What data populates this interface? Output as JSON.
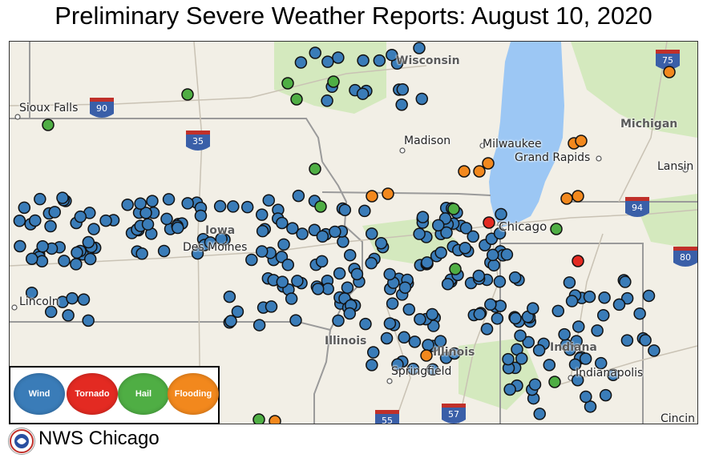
{
  "title": "Preliminary Severe Weather Reports:  August 10, 2020",
  "footer": "NWS Chicago",
  "legend": [
    {
      "label": "Wind",
      "color": "#3a7cb8"
    },
    {
      "label": "Tornado",
      "color": "#e32a22"
    },
    {
      "label": "Hail",
      "color": "#4fae44"
    },
    {
      "label": "Flooding",
      "color": "#f2881d"
    }
  ],
  "cities": {
    "sioux_falls": "Sioux Falls",
    "madison": "Madison",
    "milwaukee": "Milwaukee",
    "grand_rapids": "Grand Rapids",
    "lansing": "Lansin",
    "chicago": "Chicago",
    "des_moines": "Des Moines",
    "lincoln": "Lincoln",
    "springfield": "Springfield",
    "indianapolis": "Indianapolis",
    "cincinnati": "Cincin"
  },
  "regions": {
    "wisconsin": "Wisconsin",
    "michigan": "Michigan",
    "iowa": "Iowa",
    "illinois1": "Illinois",
    "illinois2": "Illinois",
    "indiana": "Indiana"
  },
  "highways": [
    "90",
    "35",
    "75",
    "94",
    "80",
    "55",
    "57"
  ],
  "report_counts": {
    "wind": "many",
    "tornado": 2
  },
  "colors": {
    "land": "#f2efe6",
    "lake": "#9cc7f4",
    "forest": "#cfe6b8",
    "wind": "#3a7cb8",
    "tornado": "#e32a22",
    "hail": "#4fae44",
    "flooding": "#f2881d"
  }
}
